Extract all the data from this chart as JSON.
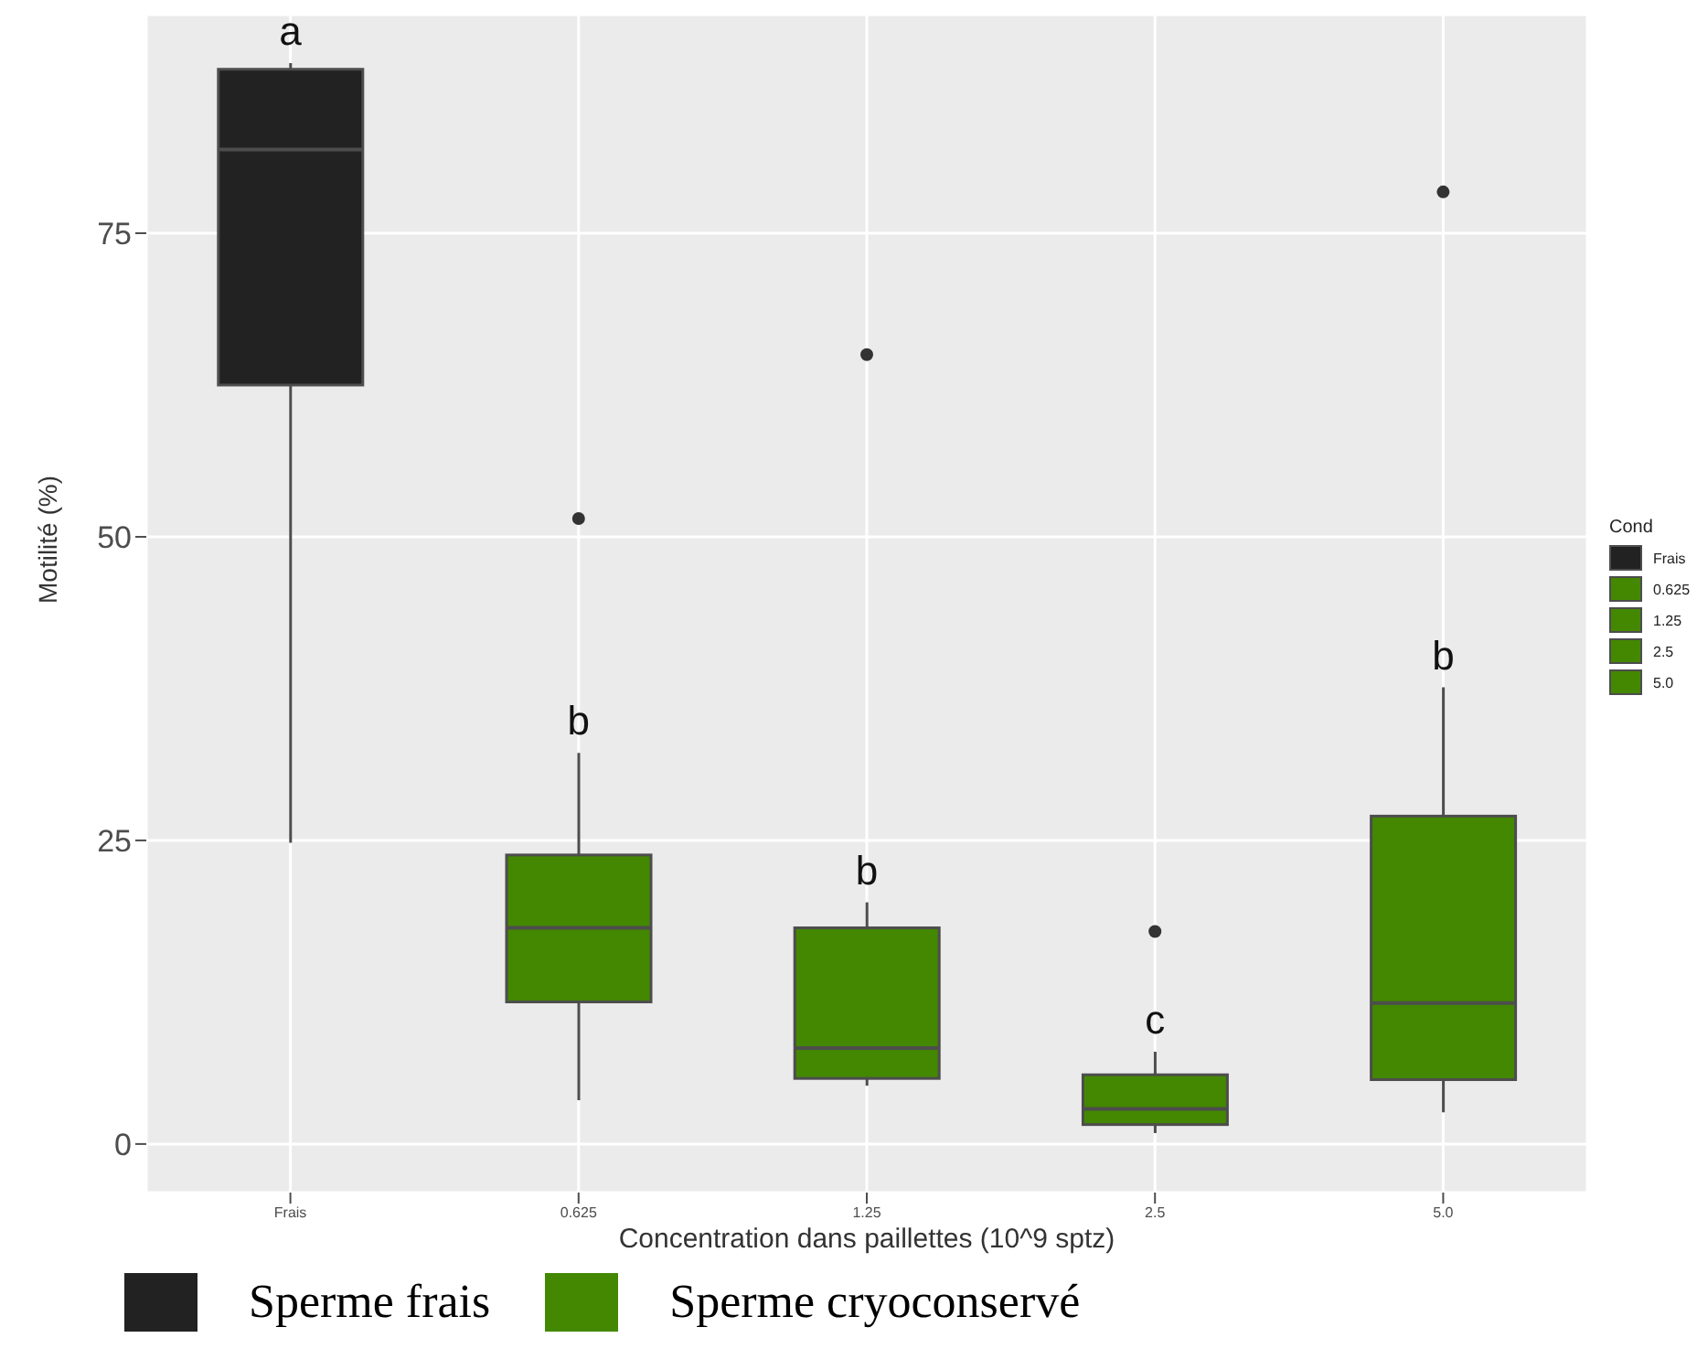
{
  "chart_data": {
    "type": "box",
    "xlabel": "Concentration dans paillettes (10^9 sptz)",
    "ylabel": "Motilité (%)",
    "legend_title": "Cond",
    "categories": [
      "Frais",
      "0.625",
      "1.25",
      "2.5",
      "5.0"
    ],
    "ylim": [
      -4,
      93
    ],
    "yticks": [
      0,
      25,
      50,
      75
    ],
    "grid": true,
    "legend": "bottom",
    "series": [
      {
        "name": "Sperme frais",
        "color": "#222222",
        "boxes": [
          {
            "low": 24.8,
            "q1": 62.5,
            "median": 81.9,
            "q3": 88.5,
            "high": 89
          },
          null,
          null,
          null,
          null
        ]
      },
      {
        "name": "Sperme cryoconservé",
        "color": "#438800",
        "boxes": [
          null,
          {
            "low": 3.6,
            "q1": 11.7,
            "median": 17.8,
            "q3": 23.8,
            "high": 32.2,
            "outliers": [
              51.5
            ]
          },
          {
            "low": 4.8,
            "q1": 5.4,
            "median": 7.9,
            "q3": 17.8,
            "high": 19.9,
            "outliers": [
              65
            ]
          },
          {
            "low": 0.9,
            "q1": 1.6,
            "median": 2.9,
            "q3": 5.7,
            "high": 7.6,
            "outliers": [
              17.5
            ]
          },
          {
            "low": 2.6,
            "q1": 5.3,
            "median": 11.6,
            "q3": 27,
            "high": 37.6,
            "outliers": [
              78.4
            ]
          }
        ]
      }
    ],
    "annotations": [
      "a",
      "b",
      "b",
      "c",
      "b"
    ]
  }
}
